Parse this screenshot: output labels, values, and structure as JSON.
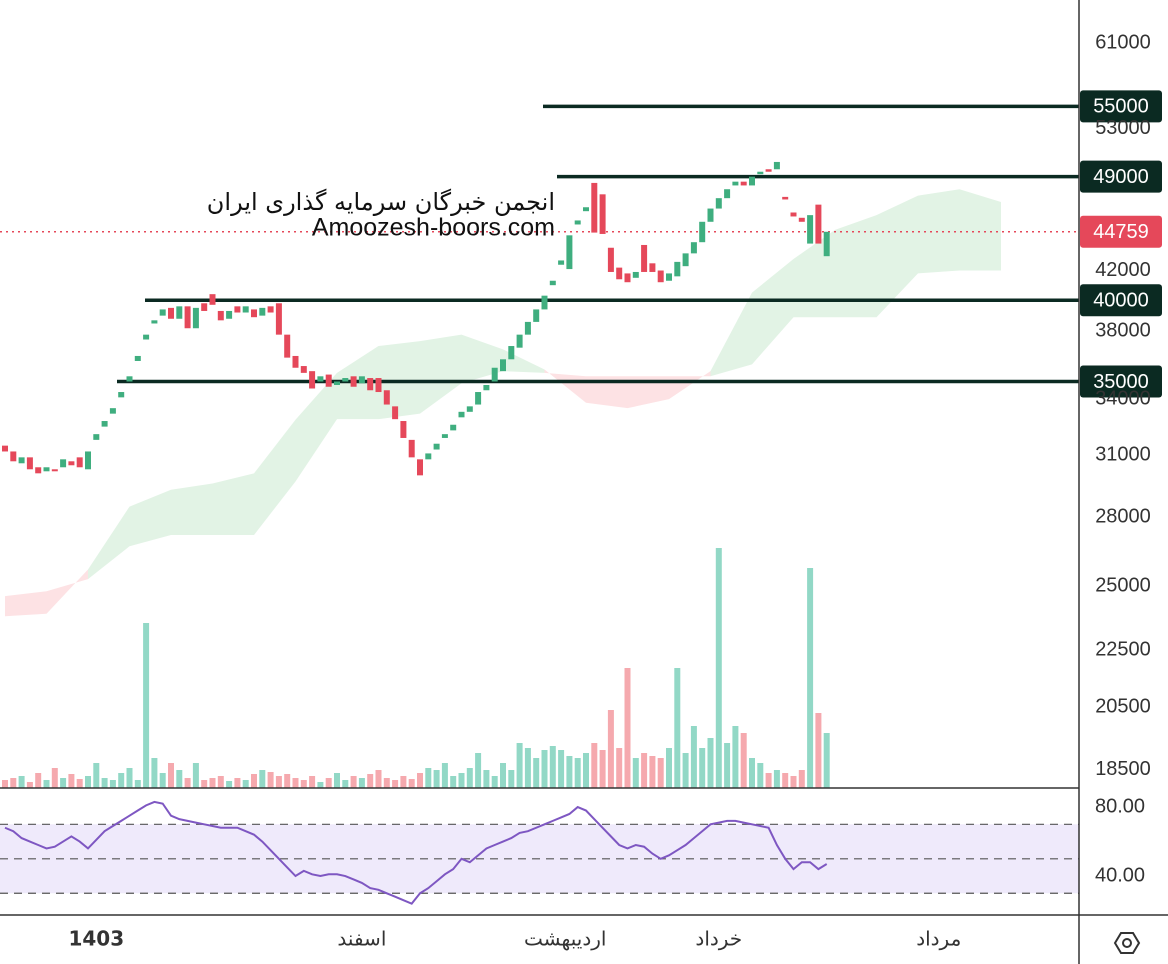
{
  "chart_data": [
    {
      "type": "candlestick",
      "yscale": "log",
      "ylim": [
        17950,
        65500
      ],
      "yticks": [
        61000,
        53000,
        42000,
        38000,
        34000,
        31000,
        28000,
        25000,
        22500,
        20500,
        18500
      ],
      "up_color": "#3fae7f",
      "down_color": "#e5485a",
      "open": [
        31500,
        31200,
        30600,
        30900,
        30400,
        30200,
        30300,
        30400,
        30700,
        30900,
        30300,
        31800,
        32500,
        33200,
        34100,
        35000,
        36200,
        37500,
        38500,
        39000,
        39500,
        38800,
        39600,
        38200,
        39800,
        40400,
        39300,
        38800,
        39600,
        39200,
        39400,
        39000,
        39600,
        39800,
        37800,
        36500,
        35900,
        35600,
        35000,
        35400,
        34800,
        35000,
        35300,
        34900,
        35200,
        35200,
        34500,
        33600,
        32800,
        31800,
        30800,
        30800,
        31300,
        31900,
        32300,
        33000,
        33300,
        33700,
        34500,
        35000,
        35600,
        36300,
        37000,
        37800,
        38600,
        39400,
        41000,
        42400,
        42100,
        45300,
        46300,
        48500,
        47600,
        43600,
        42200,
        41800,
        41500,
        43800,
        42500,
        42000,
        41300,
        41600,
        42300,
        43200,
        44000,
        45500,
        46500,
        47300,
        48300,
        48600,
        48300,
        49200,
        49600,
        49600,
        47400,
        46200,
        45800,
        43900,
        46800,
        43000
      ],
      "close": [
        31200,
        30700,
        30900,
        30300,
        30100,
        30400,
        30200,
        30800,
        30500,
        30400,
        31200,
        32100,
        32800,
        33500,
        34400,
        35300,
        36500,
        37800,
        38700,
        39400,
        38800,
        39600,
        38200,
        39500,
        39300,
        39700,
        38700,
        39300,
        39200,
        39600,
        38900,
        39500,
        39200,
        37800,
        36400,
        35800,
        35500,
        34600,
        35300,
        34700,
        35000,
        35200,
        34700,
        35300,
        34500,
        34400,
        33700,
        32900,
        31900,
        30900,
        30000,
        31100,
        31600,
        32100,
        32600,
        33300,
        33600,
        34400,
        34800,
        35800,
        36300,
        37100,
        37800,
        38600,
        39400,
        40300,
        41300,
        42700,
        44500,
        45600,
        46600,
        44700,
        44600,
        41900,
        41400,
        41200,
        41900,
        41900,
        41900,
        41200,
        41800,
        42600,
        43200,
        44000,
        45500,
        46500,
        47300,
        48000,
        48600,
        48300,
        49000,
        49400,
        49400,
        50200,
        47200,
        45900,
        45500,
        46000,
        43900,
        44759
      ],
      "cloud": {
        "x": [
          0,
          5,
          10,
          15,
          20,
          25,
          30,
          35,
          40,
          45,
          50,
          55,
          60,
          65,
          70,
          75,
          80,
          85,
          90,
          95,
          100,
          105,
          110,
          115,
          120
        ],
        "span_a": [
          23800,
          23900,
          25700,
          28500,
          29300,
          29600,
          30100,
          32870,
          35500,
          37100,
          37400,
          37800,
          36900,
          35700,
          33800,
          33500,
          34000,
          35600,
          40500,
          42800,
          44900,
          46000,
          47500,
          48000,
          47000
        ],
        "span_b": [
          24600,
          24800,
          25300,
          26700,
          27200,
          27200,
          27200,
          29700,
          32900,
          32900,
          33200,
          34900,
          35600,
          35500,
          35300,
          35300,
          35300,
          35300,
          36000,
          38900,
          38900,
          38900,
          41800,
          42000,
          42000
        ],
        "up_color": "#e2f3e5",
        "down_color": "#fde2e4"
      },
      "levels": [
        55000,
        49000,
        40000,
        35000
      ],
      "level_color": "#0b2a22",
      "last_price": 44759,
      "last_color": "#e5485a",
      "annotations": [
        "انجمن خبرگان سرمایه گذاری ایران",
        "Amoozesh-boors.com"
      ],
      "xticks": [
        {
          "value": 11,
          "label": "1403"
        },
        {
          "value": 43,
          "label": "اسفند"
        },
        {
          "value": 67.5,
          "label": "اردیبهشت"
        },
        {
          "value": 86,
          "label": "خرداد"
        },
        {
          "value": 112.5,
          "label": "مرداد"
        }
      ]
    },
    {
      "type": "bar",
      "ylim": [
        0,
        250
      ],
      "up_color": "#92d8c6",
      "down_color": "#f5a9ae",
      "values": [
        8,
        10,
        12,
        6,
        15,
        8,
        20,
        10,
        14,
        9,
        12,
        25,
        10,
        8,
        15,
        20,
        8,
        165,
        30,
        15,
        25,
        18,
        10,
        25,
        8,
        10,
        12,
        7,
        10,
        8,
        14,
        18,
        16,
        12,
        14,
        10,
        8,
        12,
        6,
        10,
        15,
        8,
        12,
        10,
        14,
        18,
        10,
        8,
        12,
        9,
        15,
        20,
        18,
        25,
        12,
        15,
        20,
        35,
        18,
        12,
        25,
        18,
        45,
        40,
        30,
        38,
        42,
        38,
        32,
        30,
        35,
        45,
        38,
        78,
        40,
        120,
        30,
        35,
        32,
        30,
        40,
        120,
        35,
        62,
        40,
        50,
        240,
        45,
        62,
        55,
        30,
        25,
        15,
        18,
        15,
        12,
        18,
        220,
        75,
        55
      ]
    },
    {
      "type": "line",
      "color": "#7e57c2",
      "ylim": [
        17.4,
        89.9
      ],
      "yticks": [
        {
          "value": 80,
          "label": "80.00"
        },
        {
          "value": 40,
          "label": "40.00"
        }
      ],
      "band": [
        30,
        70
      ],
      "levels": [
        70,
        50,
        30
      ],
      "values": [
        68,
        66,
        62,
        60,
        58,
        56,
        57,
        60,
        63,
        60,
        56,
        61,
        66,
        69,
        72,
        75,
        78,
        81,
        83,
        82,
        75,
        73,
        72,
        71,
        70,
        69,
        68,
        68,
        68,
        66,
        64,
        60,
        55,
        50,
        45,
        40,
        43,
        41,
        40,
        41,
        41,
        40,
        38,
        36,
        33,
        32,
        30,
        28,
        26,
        24,
        30,
        33,
        37,
        41,
        44,
        50,
        48,
        52,
        56,
        58,
        60,
        62,
        65,
        66,
        68,
        70,
        72,
        74,
        76,
        80,
        78,
        73,
        68,
        63,
        58,
        56,
        58,
        57,
        53,
        50,
        52,
        55,
        58,
        62,
        66,
        70,
        71,
        72,
        72,
        71,
        70,
        69,
        68,
        58,
        50,
        44,
        48,
        48,
        44,
        47
      ]
    }
  ]
}
